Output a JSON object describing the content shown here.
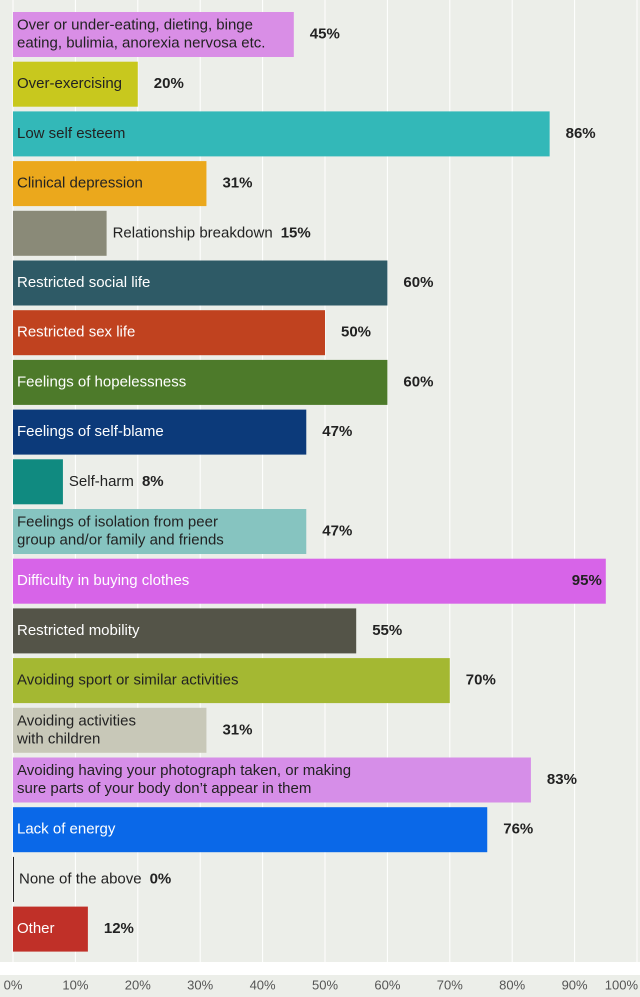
{
  "chart_data": {
    "type": "barh",
    "categories": [
      "Over or under-eating, dieting, binge\neating, bulimia, anorexia nervosa etc.",
      "Over-exercising",
      "Low self esteem",
      "Clinical depression",
      "Relationship breakdown",
      "Restricted social life",
      "Restricted sex life",
      "Feelings of hopelessness",
      "Feelings of self-blame",
      "Self-harm",
      "Feelings of isolation from peer\ngroup and/or family and friends",
      "Difficulty in buying clothes",
      "Restricted mobility",
      "Avoiding sport or similar  activities",
      "Avoiding activities\nwith children",
      "Avoiding having your photograph taken, or making\nsure parts of your body don’t appear in them",
      "Lack of energy",
      "None of the above",
      "Other"
    ],
    "values": [
      45,
      20,
      86,
      31,
      15,
      60,
      50,
      60,
      47,
      8,
      47,
      95,
      55,
      70,
      31,
      83,
      76,
      0,
      12
    ],
    "value_labels": [
      "45%",
      "20%",
      "86%",
      "31%",
      "15%",
      "60%",
      "50%",
      "60%",
      "47%",
      "8%",
      "47%",
      "95%",
      "55%",
      "70%",
      "31%",
      "83%",
      "76%",
      "0%",
      "12%"
    ],
    "colors": [
      "#d98ee6",
      "#c8c81e",
      "#33b8b8",
      "#eba81c",
      "#8a8a78",
      "#2e5a66",
      "#c0421f",
      "#4d7a2a",
      "#0c3a7a",
      "#108a80",
      "#86c4c0",
      "#d764e8",
      "#545448",
      "#a4b832",
      "#c8c8b8",
      "#d68ee8",
      "#0a68e8",
      "#222222",
      "#c03028"
    ],
    "text_colors": [
      "#222222",
      "#222222",
      "#222222",
      "#222222",
      "#222222",
      "#ffffff",
      "#ffffff",
      "#ffffff",
      "#ffffff",
      "#222222",
      "#222222",
      "#ffffff",
      "#ffffff",
      "#222222",
      "#222222",
      "#222222",
      "#ffffff",
      "#222222",
      "#ffffff"
    ],
    "xlim": [
      0,
      100
    ],
    "xticks": [
      {
        "value": 0,
        "label": "0%"
      },
      {
        "value": 10,
        "label": "10%"
      },
      {
        "value": 20,
        "label": "20%"
      },
      {
        "value": 30,
        "label": "30%"
      },
      {
        "value": 40,
        "label": "40%"
      },
      {
        "value": 50,
        "label": "50%"
      },
      {
        "value": 60,
        "label": "60%"
      },
      {
        "value": 70,
        "label": "70%"
      },
      {
        "value": 80,
        "label": "80%"
      },
      {
        "value": 90,
        "label": "90%"
      },
      {
        "value": 100,
        "label": "100%"
      }
    ],
    "grid": true
  }
}
